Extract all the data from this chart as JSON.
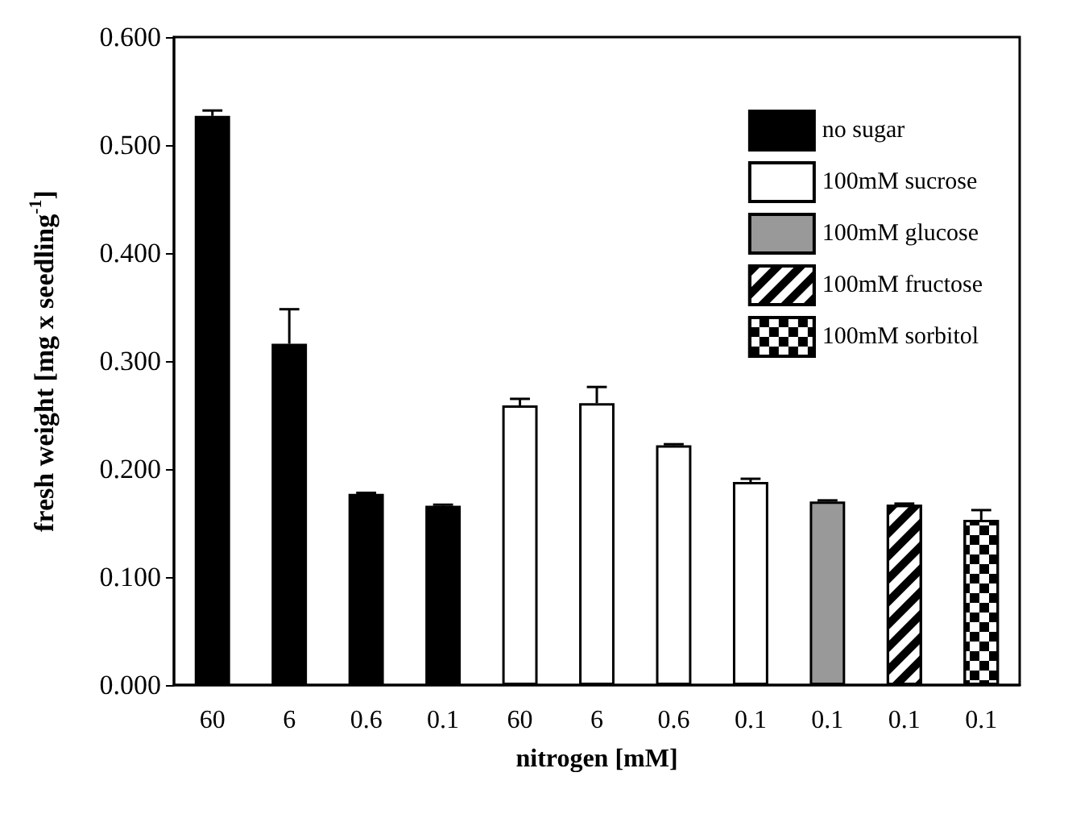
{
  "chart_data": {
    "type": "bar",
    "xlabel": "nitrogen [mM]",
    "ylabel": "fresh weight [mg x seedling$^{-1}$]",
    "categories": [
      "60",
      "6",
      "0.6",
      "0.1",
      "60",
      "6",
      "0.6",
      "0.1",
      "0.1",
      "0.1",
      "0.1"
    ],
    "series": [
      {
        "name": "no sugar",
        "color": "#000000",
        "values": [
          0.527,
          0.316,
          0.177,
          0.166,
          null,
          null,
          null,
          null,
          null,
          null,
          null
        ],
        "errors": [
          0.005,
          0.032,
          0.001,
          0.001,
          null,
          null,
          null,
          null,
          null,
          null,
          null
        ]
      },
      {
        "name": "100mM sucrose",
        "color": "#ffffff",
        "values": [
          null,
          null,
          null,
          null,
          0.259,
          0.261,
          0.222,
          0.188,
          null,
          null,
          null
        ],
        "errors": [
          null,
          null,
          null,
          null,
          0.006,
          0.015,
          0.001,
          0.003,
          null,
          null,
          null
        ]
      },
      {
        "name": "100mM glucose",
        "color": "#999999",
        "values": [
          null,
          null,
          null,
          null,
          null,
          null,
          null,
          null,
          0.17,
          null,
          null
        ],
        "errors": [
          null,
          null,
          null,
          null,
          null,
          null,
          null,
          null,
          0.001,
          null,
          null
        ]
      },
      {
        "name": "100mM fructose",
        "color": "#ffffff",
        "values": [
          null,
          null,
          null,
          null,
          null,
          null,
          null,
          null,
          null,
          0.167,
          null
        ],
        "errors": [
          null,
          null,
          null,
          null,
          null,
          null,
          null,
          null,
          null,
          0.001,
          null
        ]
      },
      {
        "name": "100mM sorbitol",
        "color": "#ffffff",
        "values": [
          null,
          null,
          null,
          null,
          null,
          null,
          null,
          null,
          null,
          null,
          0.153
        ],
        "errors": [
          null,
          null,
          null,
          null,
          null,
          null,
          null,
          null,
          null,
          null,
          0.009
        ]
      }
    ],
    "ylim": [
      0,
      0.6
    ],
    "yticks": [
      {
        "value": 0,
        "label": "0.000"
      },
      {
        "value": 0.1,
        "label": "0.100"
      },
      {
        "value": 0.2,
        "label": "0.200"
      },
      {
        "value": 0.3,
        "label": "0.300"
      },
      {
        "value": 0.4,
        "label": "0.400"
      },
      {
        "value": 0.5,
        "label": "0.500"
      },
      {
        "value": 0.6,
        "label": "0.600"
      }
    ],
    "grid": false,
    "legend": "top right"
  }
}
